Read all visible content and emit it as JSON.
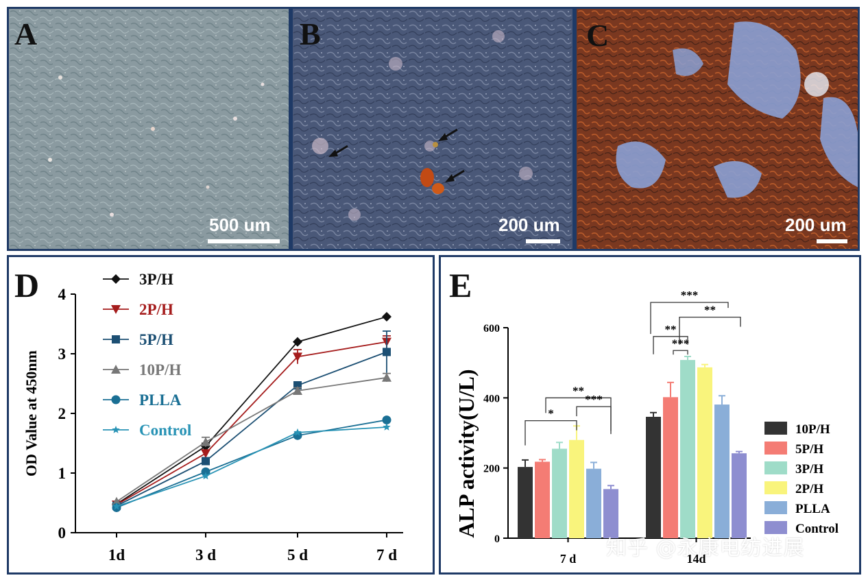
{
  "panels": {
    "A": {
      "letter": "A",
      "scale": "500 um"
    },
    "B": {
      "letter": "B",
      "scale": "200 um"
    },
    "C": {
      "letter": "C",
      "scale": "200 um"
    },
    "D": {
      "letter": "D"
    },
    "E": {
      "letter": "E"
    }
  },
  "watermark": "知乎 @永康电纺进展",
  "colors": {
    "3P/H": "#111111",
    "2P/H": "#a51c1c",
    "5P/H": "#1c4f73",
    "10P/H": "#777777",
    "PLLA": "#1a6f94",
    "Control": "#2893b5",
    "bar_10P/H": "#333333",
    "bar_5P/H": "#f47c74",
    "bar_3P/H": "#9fdcc8",
    "bar_2P/H": "#f9f47c",
    "bar_PLLA": "#8aaed8",
    "bar_Control": "#8e8ed0"
  },
  "chart_data": [
    {
      "type": "line",
      "ylabel": "OD Value at 450nm",
      "categories": [
        "1d",
        "3 d",
        "5 d",
        "7 d"
      ],
      "ylim": [
        0,
        4
      ],
      "yticks": [
        "0",
        "1",
        "2",
        "3",
        "4"
      ],
      "legend_position": "top-left",
      "series": [
        {
          "name": "3P/H",
          "marker": "diamond",
          "values": [
            0.48,
            1.45,
            3.2,
            3.62
          ],
          "err": [
            0.03,
            0.05,
            0.04,
            0.04
          ]
        },
        {
          "name": "2P/H",
          "marker": "triangle-down",
          "values": [
            0.47,
            1.33,
            2.95,
            3.2
          ],
          "err": [
            0.03,
            0.05,
            0.12,
            0.1
          ]
        },
        {
          "name": "5P/H",
          "marker": "square",
          "values": [
            0.45,
            1.2,
            2.47,
            3.03
          ],
          "err": [
            0.03,
            0.05,
            0.06,
            0.35
          ]
        },
        {
          "name": "10P/H",
          "marker": "triangle-up",
          "values": [
            0.52,
            1.52,
            2.38,
            2.6
          ],
          "err": [
            0.03,
            0.08,
            0.05,
            0.07
          ]
        },
        {
          "name": "PLLA",
          "marker": "circle",
          "values": [
            0.42,
            1.02,
            1.63,
            1.89
          ],
          "err": [
            0.02,
            0.04,
            0.04,
            0.04
          ]
        },
        {
          "name": "Control",
          "marker": "star",
          "values": [
            0.44,
            0.95,
            1.68,
            1.77
          ],
          "err": [
            0.02,
            0.03,
            0.03,
            0.03
          ]
        }
      ]
    },
    {
      "type": "bar",
      "ylabel": "ALP activity(U/L)",
      "categories": [
        "7 d",
        "14d"
      ],
      "ylim": [
        0,
        600
      ],
      "yticks": [
        "0",
        "200",
        "400",
        "600"
      ],
      "legend_position": "right",
      "series": [
        {
          "name": "10P/H",
          "values": [
            203,
            346
          ],
          "err": [
            20,
            12
          ]
        },
        {
          "name": "5P/H",
          "values": [
            218,
            402
          ],
          "err": [
            6,
            42
          ]
        },
        {
          "name": "3P/H",
          "values": [
            255,
            508
          ],
          "err": [
            18,
            10
          ]
        },
        {
          "name": "2P/H",
          "values": [
            280,
            487
          ],
          "err": [
            40,
            8
          ]
        },
        {
          "name": "PLLA",
          "values": [
            198,
            381
          ],
          "err": [
            18,
            25
          ]
        },
        {
          "name": "Control",
          "values": [
            140,
            242
          ],
          "err": [
            10,
            5
          ]
        }
      ],
      "significance": [
        "*",
        "**",
        "***",
        "***",
        "**",
        "**",
        "***"
      ]
    }
  ]
}
